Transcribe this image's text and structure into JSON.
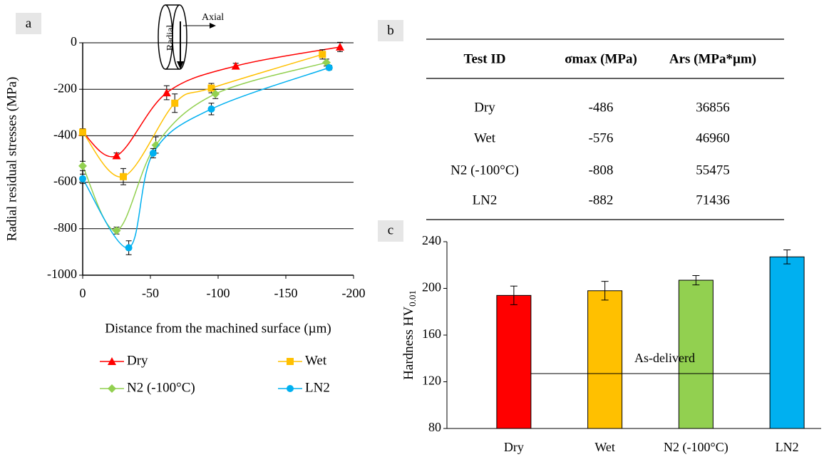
{
  "chart_data": [
    {
      "type": "line",
      "panel": "a",
      "xlabel": "Distance from the machined surface (µm)",
      "ylabel": "Radial residual stresses (MPa)",
      "xlim": [
        0,
        -200
      ],
      "xticks": [
        0,
        -50,
        -100,
        -150,
        -200
      ],
      "ylim": [
        -1000,
        0
      ],
      "yticks": [
        -1000,
        -800,
        -600,
        -400,
        -200,
        0
      ],
      "grid": true,
      "smooth": true,
      "legend": "bottom",
      "inset": {
        "radial": "Radial",
        "axial": "Axial"
      },
      "series": [
        {
          "name": "Dry",
          "color": "#ff0000",
          "marker": "triangle",
          "x": [
            0,
            -25,
            -62,
            -113,
            -190
          ],
          "values": [
            -385,
            -486,
            -215,
            -100,
            -18
          ],
          "errors": [
            15,
            12,
            30,
            12,
            20
          ]
        },
        {
          "name": "Wet",
          "color": "#ffc000",
          "marker": "square",
          "x": [
            0,
            -30,
            -68,
            -95,
            -177
          ],
          "values": [
            -385,
            -576,
            -260,
            -195,
            -50
          ],
          "errors": [
            15,
            35,
            40,
            20,
            20
          ]
        },
        {
          "name": "N2 (-100°C)",
          "color": "#92d050",
          "marker": "diamond",
          "x": [
            0,
            -25,
            -54,
            -98,
            -180
          ],
          "values": [
            -530,
            -808,
            -440,
            -220,
            -85
          ],
          "errors": [
            20,
            15,
            35,
            20,
            15
          ]
        },
        {
          "name": "LN2",
          "color": "#00b0f0",
          "marker": "circle",
          "x": [
            0,
            -34,
            -52,
            -95,
            -182
          ],
          "values": [
            -585,
            -882,
            -475,
            -285,
            -107
          ],
          "errors": [
            20,
            30,
            20,
            25,
            10
          ]
        }
      ]
    },
    {
      "type": "bar",
      "panel": "c",
      "ylabel": "Hardness HV",
      "ylabel_subscript": "0.01",
      "categories": [
        "Dry",
        "Wet",
        "N2 (-100°C)",
        "LN2"
      ],
      "values": [
        194,
        198,
        207,
        227
      ],
      "errors": [
        8,
        8,
        4,
        6
      ],
      "colors": [
        "#ff0000",
        "#ffc000",
        "#92d050",
        "#00b0f0"
      ],
      "ylim": [
        80,
        240
      ],
      "yticks": [
        80,
        120,
        160,
        200,
        240
      ],
      "reference_line": {
        "value": 127,
        "label": "As-deliverd"
      }
    }
  ],
  "table": {
    "panel": "b",
    "columns": [
      "Test ID",
      "σmax (MPa)",
      "Ars (MPa*µm)"
    ],
    "rows": [
      [
        "Dry",
        -486,
        36856
      ],
      [
        "Wet",
        -576,
        46960
      ],
      [
        "N2 (-100°C)",
        -808,
        55475
      ],
      [
        "LN2",
        -882,
        71436
      ]
    ]
  }
}
